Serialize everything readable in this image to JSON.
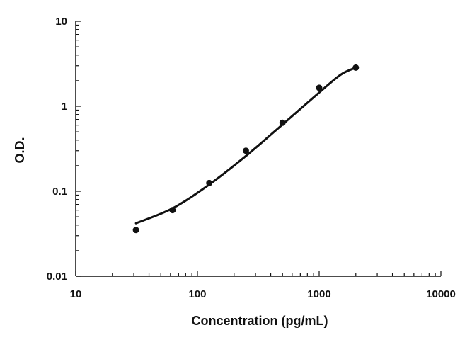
{
  "chart_data": {
    "type": "scatter",
    "title": "",
    "xlabel": "Concentration (pg/mL)",
    "ylabel": "O.D.",
    "xscale": "log",
    "yscale": "log",
    "xlim": [
      10,
      10000
    ],
    "ylim": [
      0.01,
      10
    ],
    "x_ticks": [
      "10",
      "100",
      "1000",
      "10000"
    ],
    "y_ticks": [
      "10",
      "1",
      "0.1",
      "0.01"
    ],
    "grid": false,
    "legend": "none",
    "series": [
      {
        "type": "scatter",
        "color": "#111111",
        "x": [
          31.25,
          62.5,
          125,
          250,
          500,
          1000,
          2000
        ],
        "y": [
          0.035,
          0.06,
          0.125,
          0.3,
          0.64,
          1.65,
          2.85
        ]
      },
      {
        "type": "line",
        "color": "#111111",
        "x": [
          31.25,
          62.5,
          125,
          250,
          500,
          1000,
          1500,
          2000
        ],
        "y": [
          0.042,
          0.063,
          0.12,
          0.26,
          0.61,
          1.45,
          2.35,
          2.85
        ]
      }
    ]
  }
}
